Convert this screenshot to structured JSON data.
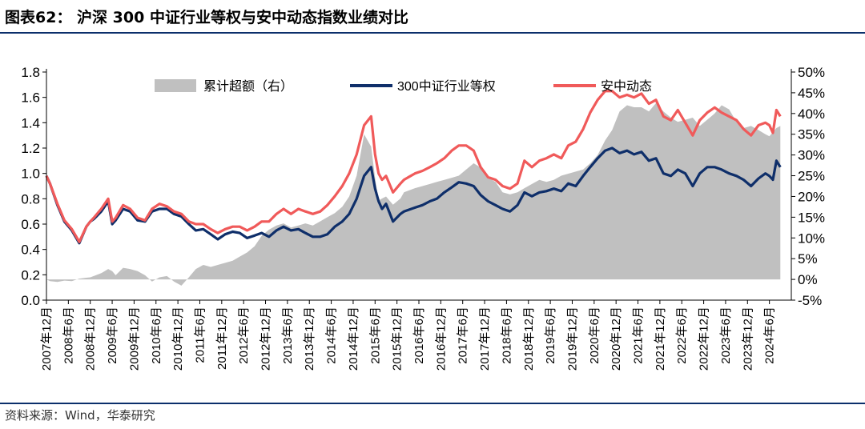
{
  "header": {
    "title": "图表62：  沪深 300 中证行业等权与安中动态指数业绩对比"
  },
  "footer": {
    "source": "资料来源：Wind，华泰研究"
  },
  "chart_data": {
    "type": "line",
    "title": "沪深 300 中证行业等权与安中动态指数业绩对比",
    "left_axis": {
      "ylim": [
        0,
        1.8
      ],
      "ticks": [
        "0.0",
        "0.2",
        "0.4",
        "0.6",
        "0.8",
        "1.0",
        "1.2",
        "1.4",
        "1.6",
        "1.8"
      ]
    },
    "right_axis": {
      "ylim": [
        -5,
        50
      ],
      "ticks": [
        "-5%",
        "0%",
        "5%",
        "10%",
        "15%",
        "20%",
        "25%",
        "30%",
        "35%",
        "40%",
        "45%",
        "50%"
      ]
    },
    "x_ticks": [
      "2007年12月",
      "2008年6月",
      "2008年12月",
      "2009年6月",
      "2009年12月",
      "2010年6月",
      "2010年12月",
      "2011年6月",
      "2011年12月",
      "2012年6月",
      "2012年12月",
      "2013年6月",
      "2013年12月",
      "2014年6月",
      "2014年12月",
      "2015年6月",
      "2015年12月",
      "2016年6月",
      "2016年12月",
      "2017年6月",
      "2017年12月",
      "2018年6月",
      "2018年12月",
      "2019年6月",
      "2019年12月",
      "2020年6月",
      "2020年12月",
      "2021年6月",
      "2021年12月",
      "2022年6月",
      "2022年12月",
      "2023年6月",
      "2023年12月",
      "2024年6月"
    ],
    "legend_position": "top",
    "colors": {
      "area": "#c0c0c0",
      "equal_weight": "#0f2f6a",
      "dynamic": "#f05a5a"
    },
    "x": [
      2007.92,
      2008.0,
      2008.17,
      2008.33,
      2008.5,
      2008.67,
      2008.83,
      2008.92,
      2009.0,
      2009.17,
      2009.33,
      2009.42,
      2009.5,
      2009.67,
      2009.83,
      2010.0,
      2010.17,
      2010.33,
      2010.5,
      2010.67,
      2010.83,
      2011.0,
      2011.17,
      2011.33,
      2011.5,
      2011.67,
      2011.83,
      2012.0,
      2012.17,
      2012.33,
      2012.5,
      2012.67,
      2012.83,
      2013.0,
      2013.17,
      2013.33,
      2013.5,
      2013.67,
      2013.83,
      2014.0,
      2014.17,
      2014.33,
      2014.5,
      2014.67,
      2014.83,
      2015.0,
      2015.17,
      2015.33,
      2015.42,
      2015.5,
      2015.58,
      2015.67,
      2015.83,
      2016.0,
      2016.08,
      2016.33,
      2016.5,
      2016.67,
      2016.83,
      2017.0,
      2017.17,
      2017.33,
      2017.5,
      2017.67,
      2017.83,
      2018.0,
      2018.17,
      2018.33,
      2018.5,
      2018.67,
      2018.83,
      2019.0,
      2019.17,
      2019.33,
      2019.5,
      2019.67,
      2019.83,
      2020.0,
      2020.17,
      2020.33,
      2020.5,
      2020.67,
      2020.83,
      2021.0,
      2021.17,
      2021.33,
      2021.5,
      2021.67,
      2021.83,
      2022.0,
      2022.17,
      2022.33,
      2022.5,
      2022.67,
      2022.83,
      2023.0,
      2023.17,
      2023.33,
      2023.5,
      2023.67,
      2023.83,
      2024.0,
      2024.17,
      2024.33,
      2024.42,
      2024.5,
      2024.58,
      2024.67
    ],
    "series": [
      {
        "name": "累计超额（右）",
        "axis": "right",
        "type": "area",
        "values": [
          0.0,
          -0.4,
          -0.6,
          -0.3,
          -0.4,
          0.2,
          0.4,
          0.5,
          0.8,
          1.5,
          2.5,
          2.0,
          1.0,
          2.8,
          2.5,
          2.0,
          1.0,
          -0.5,
          0.5,
          0.8,
          -0.5,
          -1.5,
          0.5,
          2.5,
          3.5,
          3.0,
          3.5,
          4.0,
          4.5,
          5.5,
          6.5,
          8.0,
          10.5,
          12.0,
          13.0,
          13.5,
          12.5,
          13.0,
          13.5,
          13.0,
          14.0,
          15.0,
          16.0,
          17.5,
          20.0,
          25.0,
          35.0,
          32.0,
          24.5,
          19.0,
          19.5,
          20.0,
          18.0,
          19.5,
          21.0,
          22.0,
          22.5,
          23.0,
          23.5,
          24.0,
          24.5,
          25.0,
          26.5,
          28.0,
          27.0,
          24.5,
          23.5,
          21.0,
          20.5,
          21.0,
          22.0,
          23.0,
          24.0,
          23.5,
          24.0,
          25.0,
          25.5,
          26.0,
          26.5,
          28.0,
          30.0,
          33.5,
          36.0,
          40.5,
          42.0,
          41.5,
          41.5,
          40.5,
          42.5,
          40.5,
          39.0,
          38.0,
          38.5,
          39.0,
          37.0,
          38.5,
          40.0,
          42.0,
          41.0,
          38.0,
          36.5,
          37.0,
          36.0,
          35.0,
          34.5,
          35.5,
          36.5,
          37.0
        ]
      },
      {
        "name": "300中证行业等权",
        "axis": "left",
        "type": "line",
        "values": [
          0.98,
          0.92,
          0.75,
          0.62,
          0.55,
          0.45,
          0.58,
          0.62,
          0.64,
          0.7,
          0.78,
          0.6,
          0.63,
          0.72,
          0.7,
          0.63,
          0.62,
          0.7,
          0.72,
          0.72,
          0.68,
          0.66,
          0.6,
          0.55,
          0.56,
          0.52,
          0.48,
          0.52,
          0.54,
          0.53,
          0.49,
          0.51,
          0.53,
          0.5,
          0.55,
          0.58,
          0.55,
          0.56,
          0.53,
          0.5,
          0.5,
          0.52,
          0.58,
          0.62,
          0.68,
          0.8,
          0.98,
          1.05,
          0.88,
          0.78,
          0.72,
          0.76,
          0.62,
          0.68,
          0.7,
          0.73,
          0.75,
          0.78,
          0.8,
          0.85,
          0.89,
          0.93,
          0.92,
          0.9,
          0.83,
          0.78,
          0.75,
          0.72,
          0.7,
          0.75,
          0.85,
          0.82,
          0.85,
          0.86,
          0.88,
          0.86,
          0.92,
          0.9,
          0.98,
          1.05,
          1.12,
          1.18,
          1.2,
          1.16,
          1.18,
          1.15,
          1.17,
          1.1,
          1.12,
          1.0,
          0.98,
          1.03,
          1.0,
          0.9,
          1.0,
          1.05,
          1.05,
          1.03,
          1.0,
          0.98,
          0.95,
          0.9,
          0.96,
          1.0,
          0.98,
          0.95,
          1.1,
          1.05
        ]
      },
      {
        "name": "安中动态",
        "axis": "left",
        "type": "line",
        "values": [
          0.98,
          0.92,
          0.76,
          0.63,
          0.56,
          0.46,
          0.58,
          0.62,
          0.65,
          0.72,
          0.8,
          0.62,
          0.65,
          0.75,
          0.72,
          0.65,
          0.63,
          0.72,
          0.76,
          0.74,
          0.7,
          0.68,
          0.62,
          0.6,
          0.6,
          0.56,
          0.53,
          0.56,
          0.58,
          0.58,
          0.55,
          0.58,
          0.62,
          0.62,
          0.68,
          0.72,
          0.68,
          0.72,
          0.7,
          0.68,
          0.7,
          0.75,
          0.82,
          0.9,
          1.0,
          1.15,
          1.38,
          1.45,
          1.15,
          1.0,
          0.95,
          0.98,
          0.85,
          0.92,
          0.95,
          1.0,
          1.02,
          1.05,
          1.08,
          1.12,
          1.18,
          1.22,
          1.22,
          1.18,
          1.05,
          0.97,
          0.95,
          0.9,
          0.88,
          0.92,
          1.1,
          1.05,
          1.1,
          1.12,
          1.15,
          1.12,
          1.22,
          1.25,
          1.35,
          1.48,
          1.58,
          1.65,
          1.65,
          1.6,
          1.62,
          1.6,
          1.63,
          1.55,
          1.58,
          1.45,
          1.42,
          1.5,
          1.4,
          1.3,
          1.42,
          1.48,
          1.52,
          1.48,
          1.45,
          1.42,
          1.35,
          1.3,
          1.38,
          1.4,
          1.38,
          1.32,
          1.5,
          1.45
        ]
      }
    ]
  }
}
